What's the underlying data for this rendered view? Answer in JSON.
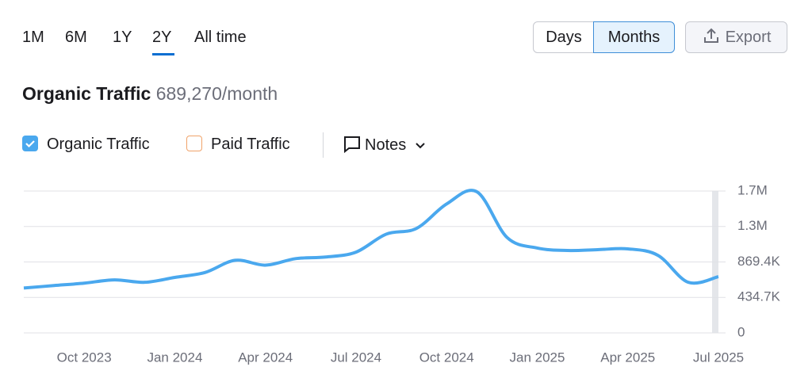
{
  "toolbar": {
    "ranges": [
      "1M",
      "6M",
      "1Y",
      "2Y",
      "All time"
    ],
    "views": [
      "Days",
      "Months"
    ],
    "export": "Export"
  },
  "header": {
    "title": "Organic Traffic",
    "value": "689,270/month"
  },
  "notes": "Notes",
  "chart_data": {
    "type": "line",
    "x": [
      "2023-08",
      "2023-09",
      "2023-10",
      "2023-11",
      "2023-12",
      "2024-01",
      "2024-02",
      "2024-03",
      "2024-04",
      "2024-05",
      "2024-06",
      "2024-07",
      "2024-08",
      "2024-09",
      "2024-10",
      "2024-11",
      "2024-12",
      "2025-01",
      "2025-02",
      "2025-03",
      "2025-04",
      "2025-05",
      "2025-06",
      "2025-07"
    ],
    "xlim": [
      "2023-08",
      "2025-07"
    ],
    "xticks": [
      {
        "value": "2023-10",
        "label": "Oct 2023"
      },
      {
        "value": "2024-01",
        "label": "Jan 2024"
      },
      {
        "value": "2024-04",
        "label": "Apr 2024"
      },
      {
        "value": "2024-07",
        "label": "Jul 2024"
      },
      {
        "value": "2024-10",
        "label": "Oct 2024"
      },
      {
        "value": "2025-01",
        "label": "Jan 2025"
      },
      {
        "value": "2025-04",
        "label": "Apr 2025"
      },
      {
        "value": "2025-07",
        "label": "Jul 2025"
      }
    ],
    "ylim": [
      0,
      1738800
    ],
    "yticks": [
      0,
      {
        "value": 434700,
        "label": "434.7K"
      },
      {
        "value": 869400,
        "label": "869.4K"
      },
      {
        "value": 1304100,
        "label": "1.3M"
      },
      {
        "value": 1738800,
        "label": "1.7M"
      }
    ],
    "grid": true,
    "series": [
      {
        "name": "Organic Traffic",
        "color": "#4aa8ee",
        "visible": true,
        "values": [
          550000,
          580000,
          610000,
          650000,
          620000,
          680000,
          740000,
          890000,
          830000,
          910000,
          930000,
          990000,
          1210000,
          1280000,
          1580000,
          1730000,
          1170000,
          1040000,
          1010000,
          1020000,
          1030000,
          950000,
          620000,
          689270
        ]
      },
      {
        "name": "Paid Traffic",
        "color": "#f0a36a",
        "visible": false,
        "values": [
          null,
          null,
          null,
          null,
          null,
          null,
          null,
          null,
          null,
          null,
          null,
          null,
          null,
          null,
          null,
          null,
          null,
          null,
          null,
          null,
          null,
          null,
          null,
          null
        ]
      }
    ]
  }
}
